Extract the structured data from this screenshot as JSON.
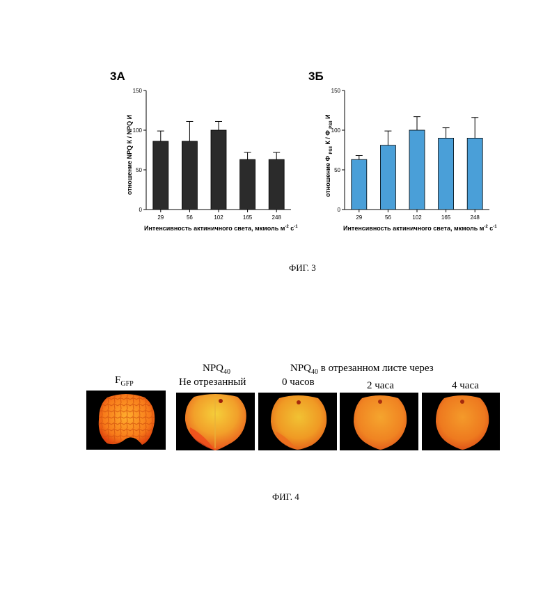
{
  "fig3": {
    "caption": "ФИГ. 3",
    "xlabel_main": "Интенсивность актиничного света, мкмоль м",
    "xlabel_exp1": "-2",
    "xlabel_mid": " с",
    "xlabel_exp2": "-1"
  },
  "chart_data": [
    {
      "type": "bar",
      "panel": "3А",
      "title": "3А",
      "categories": [
        "29",
        "56",
        "102",
        "165",
        "248"
      ],
      "values": [
        86,
        86,
        100,
        63,
        63
      ],
      "errors": [
        13,
        25,
        11,
        9,
        9
      ],
      "ylabel": "отношение NPQ К / NPQ И",
      "xlabel": "Интенсивность актиничного света, мкмоль м-2 с-1",
      "ylim": [
        0,
        150
      ],
      "yticks": [
        0,
        50,
        100,
        150
      ],
      "color": "#2b2b2b",
      "grid": false
    },
    {
      "type": "bar",
      "panel": "3Б",
      "title": "3Б",
      "categories": [
        "29",
        "56",
        "102",
        "165",
        "248"
      ],
      "values": [
        63,
        81,
        100,
        90,
        90
      ],
      "errors": [
        5,
        18,
        17,
        13,
        26
      ],
      "ylabel": "отношение Φ PSII К / Φ PSII И",
      "xlabel": "Интенсивность актиничного света, мкмоль м-2 с-1",
      "ylim": [
        0,
        150
      ],
      "yticks": [
        0,
        50,
        100,
        150
      ],
      "color": "#4a9fd8",
      "grid": false
    }
  ],
  "ylabels": {
    "a": "отношение NPQ К / NPQ И",
    "b_pre": "отношение Φ ",
    "b_sub1": "PSII",
    "b_mid": " К / Φ ",
    "b_sub2": "PSII",
    "b_post": " И"
  },
  "fig4": {
    "caption": "ФИГ. 4",
    "fgfp_main": "F",
    "fgfp_sub": "GFP",
    "npq_main": "NPQ",
    "npq_sub": "40",
    "not_cut": "Не отрезанный",
    "cut_npq_main": "NPQ",
    "cut_npq_sub": "40",
    "cut_rest": " в отрезанном листе через",
    "t0": "0 часов",
    "t2": "2 часа",
    "t4": "4 часа"
  }
}
